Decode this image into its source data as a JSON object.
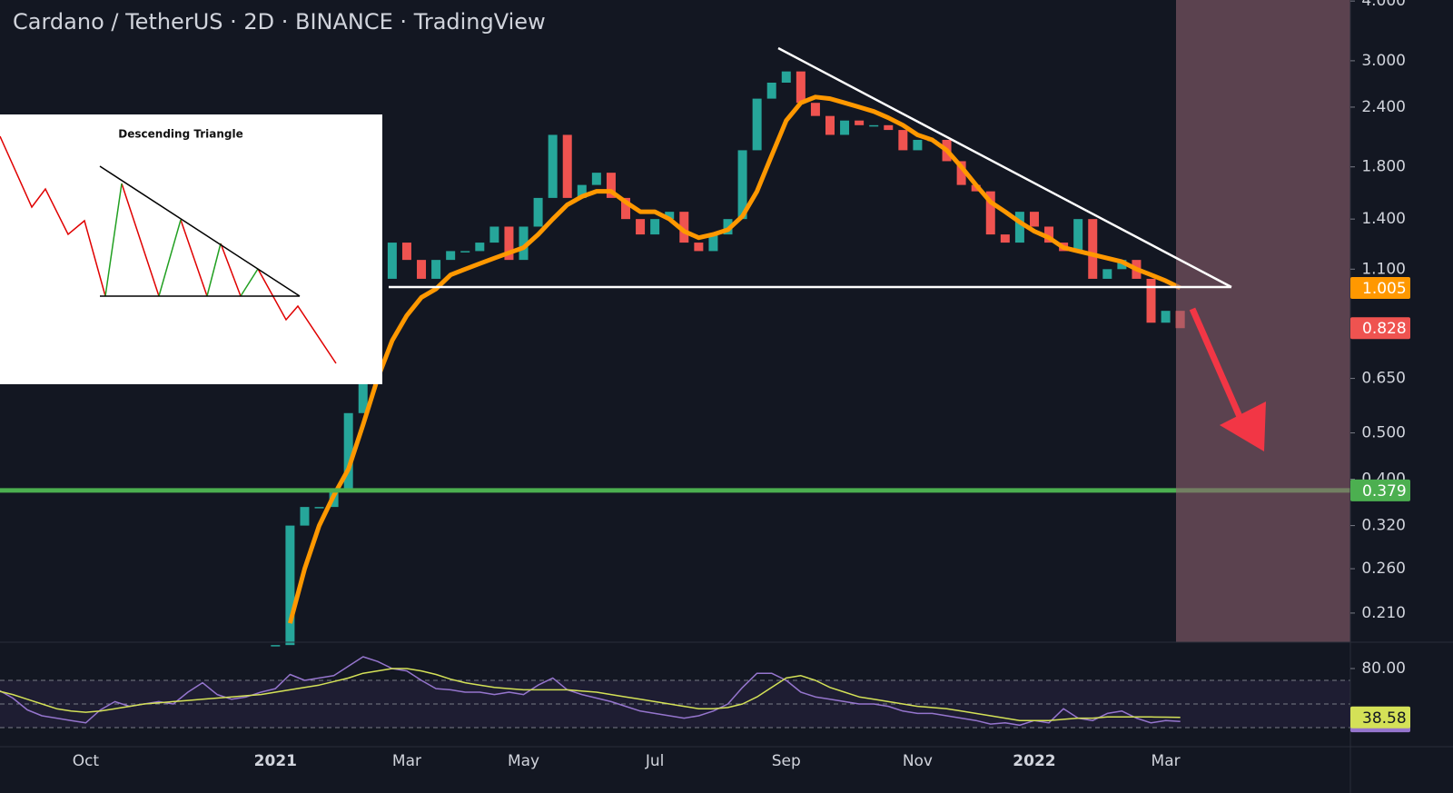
{
  "chart_data": [
    {
      "type": "candlestick",
      "title": "Cardano / TetherUS · 2D · BINANCE · TradingView",
      "annotations": [
        "Descending Triangle"
      ],
      "categories": [
        null,
        null,
        null,
        null,
        null,
        null,
        "Oct",
        null,
        null,
        null,
        null,
        null,
        null,
        null,
        null,
        null,
        null,
        null,
        null,
        "2021",
        null,
        null,
        null,
        null,
        null,
        null,
        null,
        null,
        "Mar",
        null,
        null,
        null,
        null,
        null,
        null,
        null,
        "May",
        null,
        null,
        null,
        null,
        null,
        null,
        null,
        null,
        "Jul",
        null,
        null,
        null,
        null,
        null,
        null,
        null,
        null,
        "Sep",
        null,
        null,
        null,
        null,
        null,
        null,
        null,
        null,
        "Nov",
        null,
        null,
        null,
        null,
        null,
        null,
        null,
        "2022",
        null,
        null,
        null,
        null,
        null,
        null,
        null,
        null,
        "Mar",
        null,
        null,
        null,
        null,
        null,
        null,
        null,
        null,
        null,
        null,
        null,
        null
      ],
      "up_color": "#26a69a",
      "down_color": "#ef5350",
      "series": [
        {
          "type": "candlestick",
          "values": [
            null,
            null,
            null,
            null,
            null,
            null,
            null,
            null,
            null,
            null,
            null,
            null,
            null,
            null,
            null,
            null,
            null,
            null,
            null,
            0.18,
            0.32,
            0.35,
            0.35,
            0.38,
            0.55,
            0.9,
            1.05,
            1.25,
            1.15,
            1.05,
            1.15,
            1.2,
            1.2,
            1.25,
            1.35,
            1.15,
            1.35,
            1.55,
            2.1,
            1.55,
            1.65,
            1.75,
            1.55,
            1.4,
            1.3,
            1.4,
            1.45,
            1.25,
            1.2,
            1.3,
            1.4,
            1.95,
            2.5,
            2.7,
            2.85,
            2.45,
            2.3,
            2.1,
            2.25,
            2.2,
            2.2,
            2.15,
            1.95,
            2.05,
            2.05,
            1.85,
            1.65,
            1.6,
            1.3,
            1.25,
            1.45,
            1.35,
            1.25,
            1.2,
            1.4,
            1.05,
            1.1,
            1.15,
            1.05,
            0.85,
            0.9,
            0.828,
            null,
            null,
            null,
            null,
            null,
            null,
            null,
            null,
            null,
            null,
            null
          ]
        },
        {
          "type": "line",
          "color": "#ff9800",
          "values": [
            null,
            null,
            null,
            null,
            null,
            null,
            null,
            null,
            null,
            null,
            null,
            null,
            null,
            null,
            null,
            null,
            null,
            null,
            null,
            null,
            0.2,
            0.26,
            0.32,
            0.37,
            0.42,
            0.52,
            0.65,
            0.78,
            0.88,
            0.96,
            1.0,
            1.07,
            1.1,
            1.13,
            1.16,
            1.19,
            1.22,
            1.3,
            1.4,
            1.5,
            1.56,
            1.6,
            1.6,
            1.52,
            1.45,
            1.45,
            1.4,
            1.32,
            1.28,
            1.3,
            1.33,
            1.42,
            1.6,
            1.9,
            2.25,
            2.45,
            2.52,
            2.5,
            2.45,
            2.4,
            2.35,
            2.28,
            2.2,
            2.1,
            2.05,
            1.95,
            1.8,
            1.65,
            1.52,
            1.45,
            1.38,
            1.32,
            1.28,
            1.22,
            1.2,
            1.18,
            1.16,
            1.14,
            1.1,
            1.07,
            1.04,
            1.005,
            null,
            null,
            null,
            null,
            null,
            null,
            null,
            null,
            null,
            null,
            null
          ]
        }
      ],
      "log_scale": true,
      "ylim": [
        0.1825,
        4.02
      ],
      "yticks": [
        {
          "value": 4,
          "label": "4.000"
        },
        {
          "value": 3,
          "label": "3.000"
        },
        {
          "value": 2.4,
          "label": "2.400"
        },
        {
          "value": 1.8,
          "label": "1.800"
        },
        {
          "value": 1.4,
          "label": "1.400"
        },
        {
          "value": 1.1,
          "label": "1.100"
        },
        {
          "value": 0.65,
          "label": "0.650"
        },
        {
          "value": 0.5,
          "label": "0.500"
        },
        {
          "value": 0.4,
          "label": "0.400"
        },
        {
          "value": 0.32,
          "label": "0.320"
        },
        {
          "value": 0.26,
          "label": "0.260"
        },
        {
          "value": 0.21,
          "label": "0.210"
        }
      ],
      "support_level": 0.379,
      "support_color": "#4caf50",
      "grid": false
    },
    {
      "type": "line",
      "series": [
        {
          "color": "#9575cd",
          "values": [
            62,
            55,
            45,
            40,
            38,
            36,
            34,
            45,
            52,
            48,
            50,
            52,
            50,
            60,
            68,
            58,
            54,
            56,
            60,
            63,
            75,
            70,
            72,
            74,
            82,
            90,
            86,
            80,
            78,
            70,
            63,
            62,
            60,
            60,
            58,
            60,
            58,
            66,
            72,
            62,
            58,
            55,
            52,
            48,
            44,
            42,
            40,
            38,
            40,
            44,
            50,
            64,
            76,
            76,
            70,
            60,
            56,
            54,
            52,
            50,
            50,
            48,
            44,
            42,
            42,
            40,
            38,
            36,
            33,
            34,
            32,
            36,
            34,
            46,
            38,
            36,
            42,
            44,
            38,
            34,
            36,
            35.23,
            null,
            null,
            null,
            null,
            null,
            null,
            null,
            null,
            null,
            null,
            null
          ]
        },
        {
          "color": "#d4e157",
          "values": [
            61,
            58,
            54,
            50,
            46,
            44,
            43,
            44,
            46,
            48,
            50,
            51,
            52,
            53,
            54,
            55,
            56,
            57,
            58,
            60,
            62,
            64,
            66,
            69,
            72,
            76,
            78,
            80,
            80,
            78,
            75,
            71,
            68,
            66,
            64,
            63,
            62,
            62,
            62,
            62,
            61,
            60,
            58,
            56,
            54,
            52,
            50,
            48,
            46,
            46,
            47,
            50,
            56,
            64,
            72,
            74,
            70,
            64,
            60,
            56,
            54,
            52,
            50,
            48,
            47,
            46,
            44,
            42,
            40,
            38,
            36,
            36,
            36,
            37,
            38,
            38,
            39,
            39,
            39,
            39,
            38.8,
            38.58,
            null,
            null,
            null,
            null,
            null,
            null,
            null,
            null,
            null,
            null,
            null
          ]
        }
      ],
      "ylim": [
        13.8,
        102.3
      ],
      "yticks": [
        {
          "value": 80,
          "label": "80.00"
        }
      ],
      "bands": [
        30,
        50,
        70
      ],
      "band_color": "#7e57c2"
    }
  ]
}
